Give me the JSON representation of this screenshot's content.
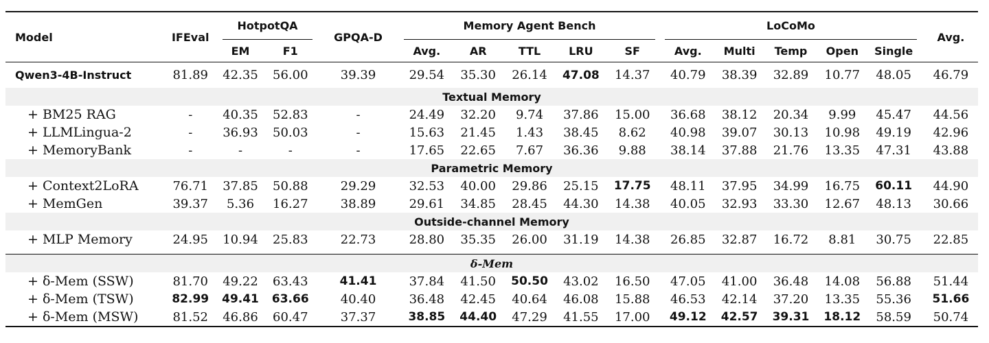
{
  "columns": {
    "model": "Model",
    "ifeval": "IFEval",
    "hotpot_group": "HotpotQA",
    "hotpot": [
      "EM",
      "F1"
    ],
    "gpqa": "GPQA-D",
    "mab_group": "Memory Agent Bench",
    "mab": [
      "Avg.",
      "AR",
      "TTL",
      "LRU",
      "SF"
    ],
    "locomo_group": "LoCoMo",
    "locomo": [
      "Avg.",
      "Multi",
      "Temp",
      "Open",
      "Single"
    ],
    "avg": "Avg."
  },
  "base": {
    "name": "Qwen3-4B-Instruct",
    "values": [
      "81.89",
      "42.35",
      "56.00",
      "39.39",
      "29.54",
      "35.30",
      "26.14",
      "47.08",
      "14.37",
      "40.79",
      "38.39",
      "32.89",
      "10.77",
      "48.05",
      "46.79"
    ],
    "bold": [
      7
    ]
  },
  "sections": [
    {
      "title": "Textual Memory",
      "rows": [
        {
          "name": "+ BM25 RAG",
          "values": [
            "-",
            "40.35",
            "52.83",
            "-",
            "24.49",
            "32.20",
            "9.74",
            "37.86",
            "15.00",
            "36.68",
            "38.12",
            "20.34",
            "9.99",
            "45.47",
            "44.56"
          ],
          "bold": []
        },
        {
          "name": "+ LLMLingua-2",
          "values": [
            "-",
            "36.93",
            "50.03",
            "-",
            "15.63",
            "21.45",
            "1.43",
            "38.45",
            "8.62",
            "40.98",
            "39.07",
            "30.13",
            "10.98",
            "49.19",
            "42.96"
          ],
          "bold": []
        },
        {
          "name": "+ MemoryBank",
          "values": [
            "-",
            "-",
            "-",
            "-",
            "17.65",
            "22.65",
            "7.67",
            "36.36",
            "9.88",
            "38.14",
            "37.88",
            "21.76",
            "13.35",
            "47.31",
            "43.88"
          ],
          "bold": []
        }
      ]
    },
    {
      "title": "Parametric Memory",
      "rows": [
        {
          "name": "+ Context2LoRA",
          "values": [
            "76.71",
            "37.85",
            "50.88",
            "29.29",
            "32.53",
            "40.00",
            "29.86",
            "25.15",
            "17.75",
            "48.11",
            "37.95",
            "34.99",
            "16.75",
            "60.11",
            "44.90"
          ],
          "bold": [
            8,
            13
          ]
        },
        {
          "name": "+ MemGen",
          "values": [
            "39.37",
            "5.36",
            "16.27",
            "38.89",
            "29.61",
            "34.85",
            "28.45",
            "44.30",
            "14.38",
            "40.05",
            "32.93",
            "33.30",
            "12.67",
            "48.13",
            "30.66"
          ],
          "bold": []
        }
      ]
    },
    {
      "title": "Outside-channel Memory",
      "rows": [
        {
          "name": "+ MLP Memory",
          "values": [
            "24.95",
            "10.94",
            "25.83",
            "22.73",
            "28.80",
            "35.35",
            "26.00",
            "31.19",
            "14.38",
            "26.85",
            "32.87",
            "16.72",
            "8.81",
            "30.75",
            "22.85"
          ],
          "bold": []
        }
      ]
    },
    {
      "title": "δ-Mem",
      "rows": [
        {
          "name": "+ δ-Mem (SSW)",
          "values": [
            "81.70",
            "49.22",
            "63.43",
            "41.41",
            "37.84",
            "41.50",
            "50.50",
            "43.02",
            "16.50",
            "47.05",
            "41.00",
            "36.48",
            "14.08",
            "56.88",
            "51.44"
          ],
          "bold": [
            3,
            6
          ]
        },
        {
          "name": "+ δ-Mem (TSW)",
          "values": [
            "82.99",
            "49.41",
            "63.66",
            "40.40",
            "36.48",
            "42.45",
            "40.64",
            "46.08",
            "15.88",
            "46.53",
            "42.14",
            "37.20",
            "13.35",
            "55.36",
            "51.66"
          ],
          "bold": [
            0,
            1,
            2,
            14
          ]
        },
        {
          "name": "+ δ-Mem (MSW)",
          "values": [
            "81.52",
            "46.86",
            "60.47",
            "37.37",
            "38.85",
            "44.40",
            "47.29",
            "41.55",
            "17.00",
            "49.12",
            "42.57",
            "39.31",
            "18.12",
            "58.59",
            "50.74"
          ],
          "bold": [
            4,
            5,
            9,
            10,
            11,
            12
          ]
        }
      ]
    }
  ]
}
